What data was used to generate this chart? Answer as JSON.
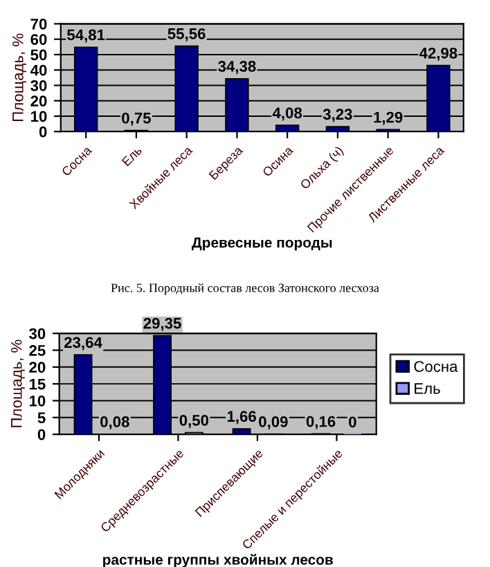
{
  "chart_data": [
    {
      "type": "bar",
      "categories": [
        "Сосна",
        "Ель",
        "Хвойные леса",
        "Береза",
        "Осина",
        "Ольха (ч)",
        "Прочие лиственные",
        "Лиственные леса"
      ],
      "series": [
        {
          "color": "#000080",
          "values": [
            54.81,
            0.75,
            55.56,
            34.38,
            4.08,
            3.23,
            1.29,
            42.98
          ],
          "value_labels": [
            "54,81",
            "0,75",
            "55,56",
            "34,38",
            "4,08",
            "3,23",
            "1,29",
            "42,98"
          ]
        }
      ],
      "xlabel": "Древесные породы",
      "ylabel": "Площадь, %",
      "ylim": [
        0,
        70
      ],
      "yticks": [
        0,
        10,
        20,
        30,
        40,
        50,
        60,
        70
      ],
      "grid": "y",
      "legend": false,
      "annotations": [
        "Рис. 5. Породный состав лесов Затонского лесхоза"
      ]
    },
    {
      "type": "bar",
      "categories": [
        "Молодняки",
        "Средневозрастные",
        "Приспевающие",
        "Спелые и перестойные"
      ],
      "series": [
        {
          "name": "Сосна",
          "color": "#000080",
          "values": [
            23.64,
            29.35,
            1.66,
            0.16
          ],
          "value_labels": [
            "23,64",
            "29,35",
            "1,66",
            "0,16"
          ]
        },
        {
          "name": "Ель",
          "color": "#9999ff",
          "values": [
            0.08,
            0.5,
            0.09,
            0
          ],
          "value_labels": [
            "0,08",
            "0,50",
            "0,09",
            "0"
          ]
        }
      ],
      "xlabel": "растные группы хвойных лесов",
      "ylabel": "Площадь, %",
      "ylim": [
        0,
        30
      ],
      "yticks": [
        0,
        5,
        10,
        15,
        20,
        25,
        30
      ],
      "grid": "y",
      "legend": "right"
    }
  ]
}
